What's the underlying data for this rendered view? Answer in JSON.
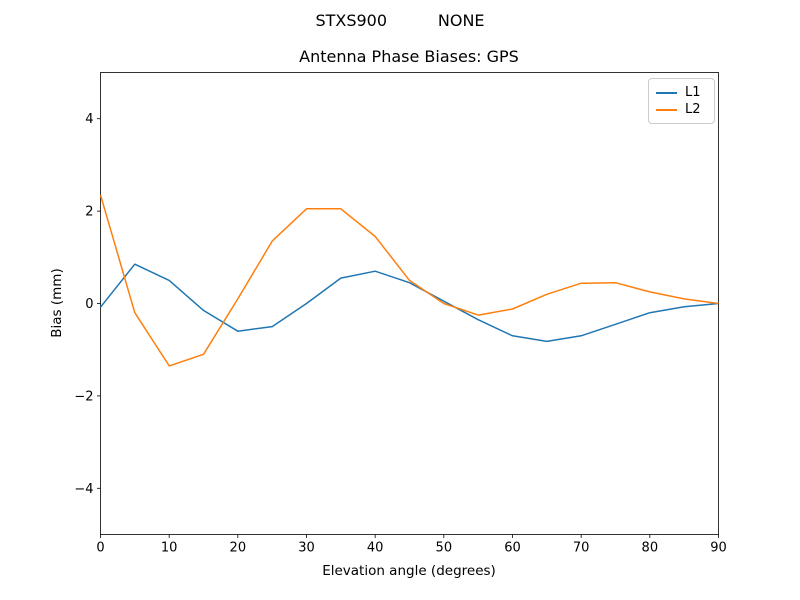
{
  "figure": {
    "suptitle": "STXS900          NONE",
    "background": "#ffffff"
  },
  "chart_data": {
    "type": "line",
    "title": "Antenna Phase Biases: GPS",
    "xlabel": "Elevation angle (degrees)",
    "ylabel": "Bias (mm)",
    "xlim": [
      0,
      90
    ],
    "ylim": [
      -5,
      5
    ],
    "grid": false,
    "legend_position": "upper right",
    "xticks": [
      {
        "value": 0,
        "label": "0"
      },
      {
        "value": 10,
        "label": "10"
      },
      {
        "value": 20,
        "label": "20"
      },
      {
        "value": 30,
        "label": "30"
      },
      {
        "value": 40,
        "label": "40"
      },
      {
        "value": 50,
        "label": "50"
      },
      {
        "value": 60,
        "label": "60"
      },
      {
        "value": 70,
        "label": "70"
      },
      {
        "value": 80,
        "label": "80"
      },
      {
        "value": 90,
        "label": "90"
      }
    ],
    "yticks": [
      {
        "value": -4,
        "label": "−4"
      },
      {
        "value": -2,
        "label": "−2"
      },
      {
        "value": 0,
        "label": "0"
      },
      {
        "value": 2,
        "label": "2"
      },
      {
        "value": 4,
        "label": "4"
      }
    ],
    "x": [
      0,
      5,
      10,
      15,
      20,
      25,
      30,
      35,
      40,
      45,
      50,
      55,
      60,
      65,
      70,
      75,
      80,
      85,
      90
    ],
    "series": [
      {
        "name": "L1",
        "color": "#1f77b4",
        "values": [
          -0.08,
          0.85,
          0.5,
          -0.15,
          -0.6,
          -0.5,
          0.0,
          0.55,
          0.7,
          0.45,
          0.05,
          -0.35,
          -0.7,
          -0.82,
          -0.7,
          -0.45,
          -0.2,
          -0.07,
          0.0
        ]
      },
      {
        "name": "L2",
        "color": "#ff7f0e",
        "values": [
          2.35,
          -0.2,
          -1.35,
          -1.1,
          0.1,
          1.35,
          2.05,
          2.05,
          1.45,
          0.5,
          0.0,
          -0.25,
          -0.12,
          0.2,
          0.44,
          0.45,
          0.25,
          0.1,
          0.0
        ]
      }
    ]
  }
}
